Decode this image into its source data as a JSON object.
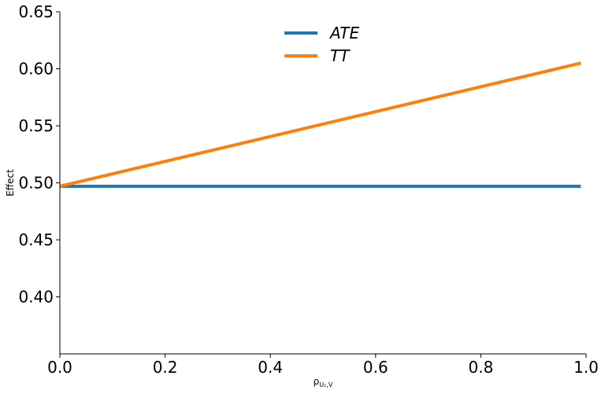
{
  "chart_data": {
    "type": "line",
    "title": "",
    "xlabel": "ρ",
    "xlabel_sub": "U₁,V",
    "ylabel": "Effect",
    "xlim": [
      0.0,
      1.0
    ],
    "ylim": [
      0.35,
      0.65
    ],
    "x_ticks": [
      0.0,
      0.2,
      0.4,
      0.6,
      0.8,
      1.0
    ],
    "x_tick_labels": [
      "0.0",
      "0.2",
      "0.4",
      "0.6",
      "0.8",
      "1.0"
    ],
    "y_ticks": [
      0.4,
      0.45,
      0.5,
      0.55,
      0.6,
      0.65
    ],
    "y_tick_labels": [
      "0.40",
      "0.45",
      "0.50",
      "0.55",
      "0.60",
      "0.65"
    ],
    "grid": false,
    "legend_position": "top-center",
    "series": [
      {
        "name": "ATE",
        "color": "#1f77b4",
        "x": [
          0.0,
          0.99
        ],
        "y": [
          0.497,
          0.497
        ]
      },
      {
        "name": "TT",
        "color": "#ff7f0e",
        "x": [
          0.0,
          0.99
        ],
        "y": [
          0.497,
          0.605
        ]
      }
    ]
  }
}
